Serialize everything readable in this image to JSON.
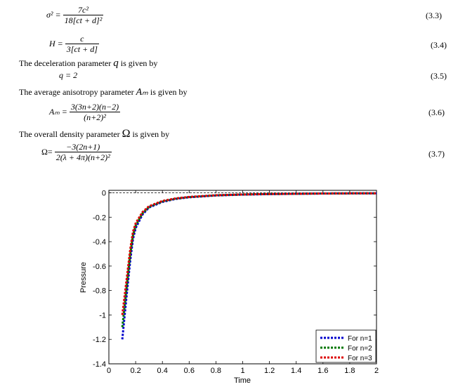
{
  "equations": [
    {
      "lhs": "σ² =",
      "num": "7c²",
      "den": "18[ct + d]²",
      "number": "(3.3)"
    },
    {
      "lhs": "H =",
      "num": "c",
      "den": "3[ct + d]",
      "number": "(3.4)"
    },
    {
      "lhs": "q = 2",
      "number": "(3.5)"
    },
    {
      "lhs": "Aₘ =",
      "num": "3(3n+2)(n−2)",
      "den": "(n+2)²",
      "number": "(3.6)"
    },
    {
      "lhs": "Ω=",
      "num": "−3(2n+1)",
      "den": "2(λ + 4π)(n+2)²",
      "number": "(3.7)"
    }
  ],
  "paragraphs": {
    "decel_text": "The deceleration parameter",
    "decel_sym": "q",
    "decel_tail": "is given by",
    "aniso_text": "The average anisotropy parameter",
    "aniso_sym": "Aₘ",
    "aniso_tail": "is given by",
    "density_text": "The overall density parameter",
    "density_sym": "Ω",
    "density_tail": "is given by"
  },
  "chart_data": {
    "type": "line",
    "xlabel": "Time",
    "ylabel": "Pressure",
    "xlim": [
      0,
      2
    ],
    "ylim": [
      -1.4,
      0.02
    ],
    "xticks": [
      "0",
      "0.2",
      "0.4",
      "0.6",
      "0.8",
      "1",
      "1.2",
      "1.4",
      "1.6",
      "1.8",
      "2"
    ],
    "yticks": [
      "0",
      "-0.2",
      "-0.4",
      "-0.6",
      "-0.8",
      "-1",
      "-1.2",
      "-1.4"
    ],
    "legend_position": "bottom-right",
    "reference_line": {
      "y": 0,
      "style": "dashed",
      "color": "#000000"
    },
    "series": [
      {
        "name": "For n=1",
        "color": "#0000cc",
        "x": [
          0.1,
          0.12,
          0.14,
          0.16,
          0.18,
          0.2,
          0.25,
          0.3,
          0.4,
          0.5,
          0.6,
          0.8,
          1.0,
          1.2,
          1.4,
          1.6,
          1.8,
          2.0
        ],
        "y": [
          -1.2,
          -0.98,
          -0.76,
          -0.55,
          -0.38,
          -0.29,
          -0.18,
          -0.12,
          -0.075,
          -0.05,
          -0.037,
          -0.022,
          -0.015,
          -0.011,
          -0.008,
          -0.006,
          -0.005,
          -0.004
        ]
      },
      {
        "name": "For n=2",
        "color": "#007700",
        "x": [
          0.1,
          0.12,
          0.14,
          0.16,
          0.18,
          0.2,
          0.25,
          0.3,
          0.4,
          0.5,
          0.6,
          0.8,
          1.0,
          1.2,
          1.4,
          1.6,
          1.8,
          2.0
        ],
        "y": [
          -1.1,
          -0.9,
          -0.7,
          -0.5,
          -0.35,
          -0.27,
          -0.17,
          -0.115,
          -0.07,
          -0.048,
          -0.035,
          -0.021,
          -0.014,
          -0.01,
          -0.008,
          -0.006,
          -0.005,
          -0.004
        ]
      },
      {
        "name": "For n=3",
        "color": "#dd0000",
        "x": [
          0.1,
          0.12,
          0.14,
          0.16,
          0.18,
          0.2,
          0.25,
          0.3,
          0.4,
          0.5,
          0.6,
          0.8,
          1.0,
          1.2,
          1.4,
          1.6,
          1.8,
          2.0
        ],
        "y": [
          -1.0,
          -0.82,
          -0.64,
          -0.46,
          -0.32,
          -0.25,
          -0.16,
          -0.11,
          -0.067,
          -0.046,
          -0.034,
          -0.02,
          -0.014,
          -0.01,
          -0.008,
          -0.006,
          -0.005,
          -0.004
        ]
      }
    ]
  }
}
